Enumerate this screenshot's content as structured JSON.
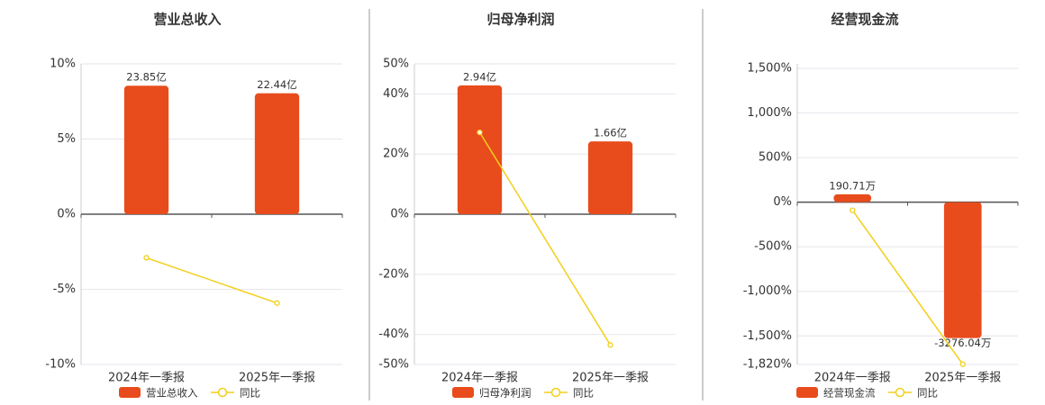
{
  "chart_data": [
    {
      "type": "bar",
      "title": "营业总收入",
      "categories": [
        "2024年一季报",
        "2025年一季报"
      ],
      "series": [
        {
          "name": "营业总收入",
          "color": "#e84c1c",
          "axis": "y2",
          "values": [
            23.85,
            22.44
          ],
          "value_labels": [
            "23.85亿",
            "22.44亿"
          ]
        },
        {
          "name": "同比",
          "type": "line",
          "color": "#f2cf1a",
          "values": [
            -2.9,
            -5.91
          ]
        }
      ],
      "ylim": [
        -10,
        10
      ],
      "yticks": [
        {
          "value": -10,
          "label": "-10%"
        },
        {
          "value": -5,
          "label": "-5%"
        },
        {
          "value": 0,
          "label": "0%"
        },
        {
          "value": 5,
          "label": "5%"
        },
        {
          "value": 10,
          "label": "10%"
        }
      ],
      "y2lim": [
        -27.9,
        27.9
      ],
      "grid": true
    },
    {
      "type": "bar",
      "title": "归母净利润",
      "categories": [
        "2024年一季报",
        "2025年一季报"
      ],
      "series": [
        {
          "name": "归母净利润",
          "color": "#e84c1c",
          "axis": "y2",
          "values": [
            2.94,
            1.66
          ],
          "value_labels": [
            "2.94亿",
            "1.66亿"
          ]
        },
        {
          "name": "同比",
          "type": "line",
          "color": "#f2cf1a",
          "values": [
            27.2,
            -43.5
          ]
        }
      ],
      "ylim": [
        -50,
        50
      ],
      "yticks": [
        {
          "value": -50,
          "label": "-50%"
        },
        {
          "value": -40,
          "label": "-40%"
        },
        {
          "value": -20,
          "label": "-20%"
        },
        {
          "value": 0,
          "label": "0%"
        },
        {
          "value": 20,
          "label": "20%"
        },
        {
          "value": 40,
          "label": "40%"
        },
        {
          "value": 50,
          "label": "50%"
        }
      ],
      "y2lim": [
        -3.43,
        3.43
      ],
      "grid": true
    },
    {
      "type": "bar",
      "title": "经营现金流",
      "categories": [
        "2024年一季报",
        "2025年一季报"
      ],
      "series": [
        {
          "name": "经营现金流",
          "color": "#e84c1c",
          "axis": "y2",
          "values": [
            190.71,
            -3276.04
          ],
          "value_labels": [
            "190.71万",
            "-3276.04万"
          ]
        },
        {
          "name": "同比",
          "type": "line",
          "color": "#f2cf1a",
          "values": [
            -90.6,
            -1817.8
          ]
        }
      ],
      "ylim": [
        -1820,
        1550
      ],
      "yticks": [
        {
          "value": -1820,
          "label": "-1,820%"
        },
        {
          "value": -1500,
          "label": "-1,500%"
        },
        {
          "value": -1000,
          "label": "-1,000%"
        },
        {
          "value": -500,
          "label": "-500%"
        },
        {
          "value": 0,
          "label": "0%"
        },
        {
          "value": 500,
          "label": "500%"
        },
        {
          "value": 1000,
          "label": "1,000%"
        },
        {
          "value": 1500,
          "label": "1,500%"
        }
      ],
      "y2lim": [
        -3913,
        3333
      ],
      "grid": true
    }
  ]
}
